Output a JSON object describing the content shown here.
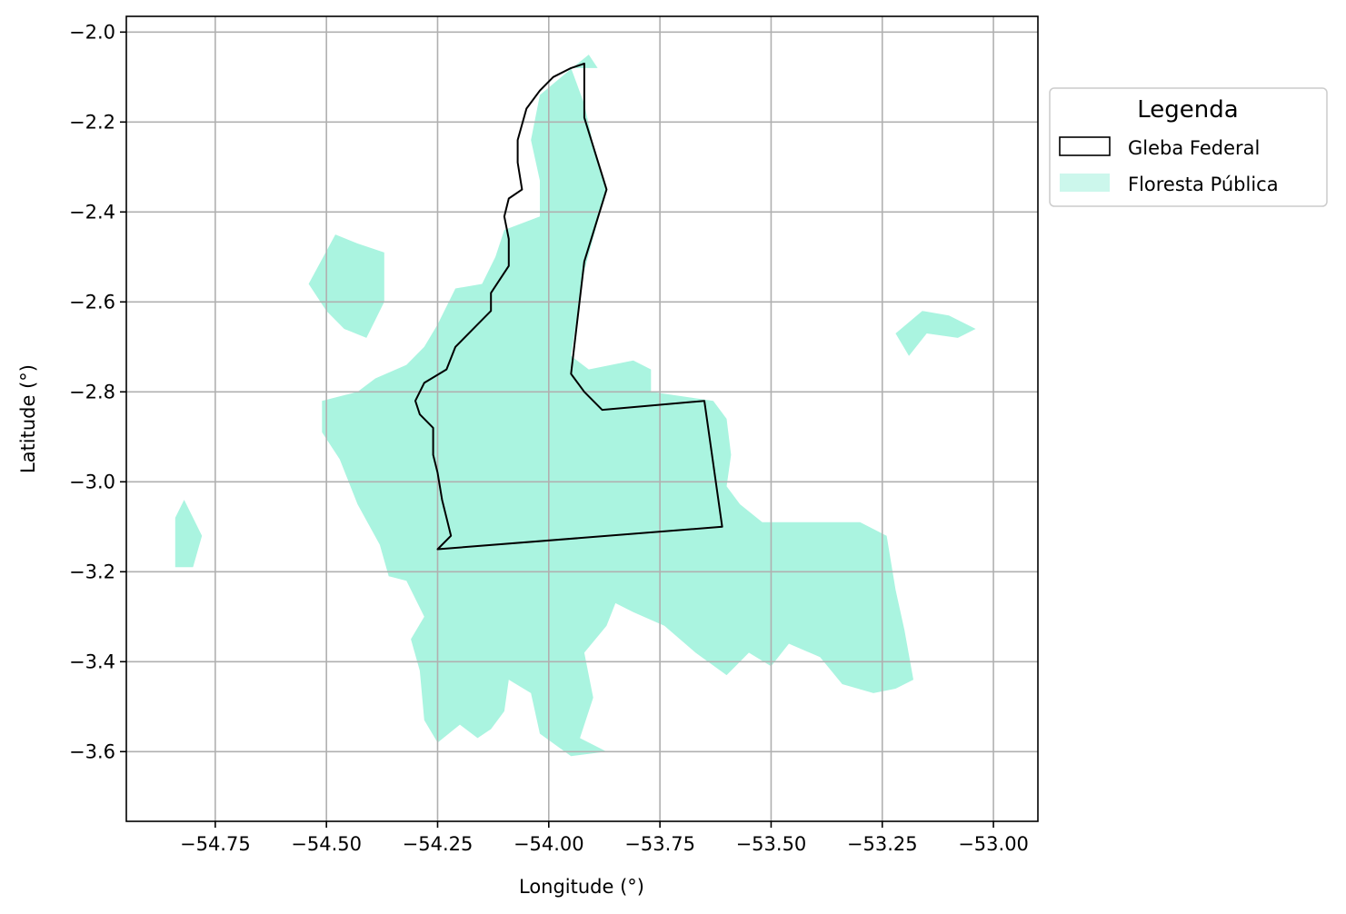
{
  "chart_data": {
    "type": "map",
    "xlabel": "Longitude (°)",
    "ylabel": "Latitude (°)",
    "xlim": [
      -54.95,
      -52.9
    ],
    "ylim": [
      -3.755,
      -1.965
    ],
    "grid": true,
    "x_ticks": [
      -54.75,
      -54.5,
      -54.25,
      -54.0,
      -53.75,
      -53.5,
      -53.25,
      -53.0
    ],
    "x_tick_labels": [
      "−54.75",
      "−54.50",
      "−54.25",
      "−54.00",
      "−53.75",
      "−53.50",
      "−53.25",
      "−53.00"
    ],
    "y_ticks": [
      -2.0,
      -2.2,
      -2.4,
      -2.6,
      -2.8,
      -3.0,
      -3.2,
      -3.4,
      -3.6
    ],
    "y_tick_labels": [
      "−2.0",
      "−2.2",
      "−2.4",
      "−2.6",
      "−2.8",
      "−3.0",
      "−3.2",
      "−3.4",
      "−3.6"
    ],
    "legend": {
      "title": "Legenda",
      "placement": "outside-right-top",
      "entries": [
        {
          "label": "Gleba Federal",
          "style": "outline",
          "color": "#000000"
        },
        {
          "label": "Floresta Pública",
          "style": "fill",
          "color": "#aaf4e0"
        }
      ]
    },
    "series": [
      {
        "name": "Gleba Federal",
        "kind": "outline",
        "color": "#000000",
        "polygon": [
          [
            -53.92,
            -2.07
          ],
          [
            -53.92,
            -2.19
          ],
          [
            -53.87,
            -2.35
          ],
          [
            -53.92,
            -2.51
          ],
          [
            -53.95,
            -2.76
          ],
          [
            -53.92,
            -2.8
          ],
          [
            -53.88,
            -2.84
          ],
          [
            -53.65,
            -2.82
          ],
          [
            -53.61,
            -3.1
          ],
          [
            -54.25,
            -3.15
          ],
          [
            -54.22,
            -3.12
          ],
          [
            -54.23,
            -3.08
          ],
          [
            -54.24,
            -3.04
          ],
          [
            -54.25,
            -2.98
          ],
          [
            -54.26,
            -2.94
          ],
          [
            -54.26,
            -2.88
          ],
          [
            -54.29,
            -2.85
          ],
          [
            -54.3,
            -2.82
          ],
          [
            -54.28,
            -2.78
          ],
          [
            -54.23,
            -2.75
          ],
          [
            -54.21,
            -2.7
          ],
          [
            -54.16,
            -2.65
          ],
          [
            -54.13,
            -2.62
          ],
          [
            -54.13,
            -2.58
          ],
          [
            -54.09,
            -2.52
          ],
          [
            -54.09,
            -2.46
          ],
          [
            -54.1,
            -2.41
          ],
          [
            -54.09,
            -2.37
          ],
          [
            -54.06,
            -2.35
          ],
          [
            -54.07,
            -2.29
          ],
          [
            -54.07,
            -2.24
          ],
          [
            -54.05,
            -2.17
          ],
          [
            -54.02,
            -2.13
          ],
          [
            -53.99,
            -2.1
          ],
          [
            -53.95,
            -2.08
          ],
          [
            -53.92,
            -2.07
          ]
        ]
      },
      {
        "name": "Floresta Pública",
        "kind": "fill",
        "color": "#aaf4e0",
        "polygons": [
          [
            [
              -53.91,
              -2.05
            ],
            [
              -53.89,
              -2.08
            ],
            [
              -53.95,
              -2.08
            ],
            [
              -53.92,
              -2.16
            ],
            [
              -53.9,
              -2.25
            ],
            [
              -53.87,
              -2.35
            ],
            [
              -53.92,
              -2.53
            ],
            [
              -53.95,
              -2.72
            ],
            [
              -53.91,
              -2.75
            ],
            [
              -53.81,
              -2.73
            ],
            [
              -53.77,
              -2.75
            ],
            [
              -53.77,
              -2.8
            ],
            [
              -53.63,
              -2.82
            ],
            [
              -53.6,
              -2.86
            ],
            [
              -53.59,
              -2.94
            ],
            [
              -53.6,
              -3.01
            ],
            [
              -53.57,
              -3.05
            ],
            [
              -53.52,
              -3.09
            ],
            [
              -53.3,
              -3.09
            ],
            [
              -53.24,
              -3.12
            ],
            [
              -53.22,
              -3.24
            ],
            [
              -53.2,
              -3.33
            ],
            [
              -53.18,
              -3.44
            ],
            [
              -53.22,
              -3.46
            ],
            [
              -53.27,
              -3.47
            ],
            [
              -53.34,
              -3.45
            ],
            [
              -53.39,
              -3.39
            ],
            [
              -53.46,
              -3.36
            ],
            [
              -53.5,
              -3.41
            ],
            [
              -53.55,
              -3.38
            ],
            [
              -53.6,
              -3.43
            ],
            [
              -53.67,
              -3.38
            ],
            [
              -53.74,
              -3.32
            ],
            [
              -53.81,
              -3.29
            ],
            [
              -53.85,
              -3.27
            ],
            [
              -53.87,
              -3.32
            ],
            [
              -53.92,
              -3.38
            ],
            [
              -53.9,
              -3.48
            ],
            [
              -53.93,
              -3.57
            ],
            [
              -53.87,
              -3.6
            ],
            [
              -53.95,
              -3.61
            ],
            [
              -54.02,
              -3.56
            ],
            [
              -54.04,
              -3.47
            ],
            [
              -54.09,
              -3.44
            ],
            [
              -54.1,
              -3.51
            ],
            [
              -54.13,
              -3.55
            ],
            [
              -54.16,
              -3.57
            ],
            [
              -54.2,
              -3.54
            ],
            [
              -54.25,
              -3.58
            ],
            [
              -54.28,
              -3.53
            ],
            [
              -54.29,
              -3.42
            ],
            [
              -54.31,
              -3.35
            ],
            [
              -54.28,
              -3.3
            ],
            [
              -54.32,
              -3.22
            ],
            [
              -54.36,
              -3.21
            ],
            [
              -54.38,
              -3.14
            ],
            [
              -54.43,
              -3.05
            ],
            [
              -54.47,
              -2.95
            ],
            [
              -54.51,
              -2.89
            ],
            [
              -54.51,
              -2.82
            ],
            [
              -54.43,
              -2.8
            ],
            [
              -54.39,
              -2.77
            ],
            [
              -54.32,
              -2.74
            ],
            [
              -54.28,
              -2.7
            ],
            [
              -54.25,
              -2.65
            ],
            [
              -54.21,
              -2.57
            ],
            [
              -54.15,
              -2.56
            ],
            [
              -54.12,
              -2.5
            ],
            [
              -54.1,
              -2.44
            ],
            [
              -54.02,
              -2.41
            ],
            [
              -54.02,
              -2.33
            ],
            [
              -54.04,
              -2.24
            ],
            [
              -54.02,
              -2.14
            ],
            [
              -53.96,
              -2.09
            ],
            [
              -53.91,
              -2.05
            ]
          ],
          [
            [
              -54.37,
              -2.49
            ],
            [
              -54.43,
              -2.47
            ],
            [
              -54.48,
              -2.45
            ],
            [
              -54.54,
              -2.56
            ],
            [
              -54.5,
              -2.62
            ],
            [
              -54.46,
              -2.66
            ],
            [
              -54.41,
              -2.68
            ],
            [
              -54.37,
              -2.6
            ],
            [
              -54.37,
              -2.49
            ]
          ],
          [
            [
              -54.82,
              -3.04
            ],
            [
              -54.8,
              -3.08
            ],
            [
              -54.78,
              -3.12
            ],
            [
              -54.8,
              -3.19
            ],
            [
              -54.84,
              -3.19
            ],
            [
              -54.84,
              -3.08
            ],
            [
              -54.82,
              -3.04
            ]
          ],
          [
            [
              -53.22,
              -2.67
            ],
            [
              -53.16,
              -2.62
            ],
            [
              -53.1,
              -2.63
            ],
            [
              -53.04,
              -2.66
            ],
            [
              -53.08,
              -2.68
            ],
            [
              -53.15,
              -2.67
            ],
            [
              -53.19,
              -2.72
            ],
            [
              -53.22,
              -2.67
            ]
          ]
        ]
      }
    ]
  }
}
